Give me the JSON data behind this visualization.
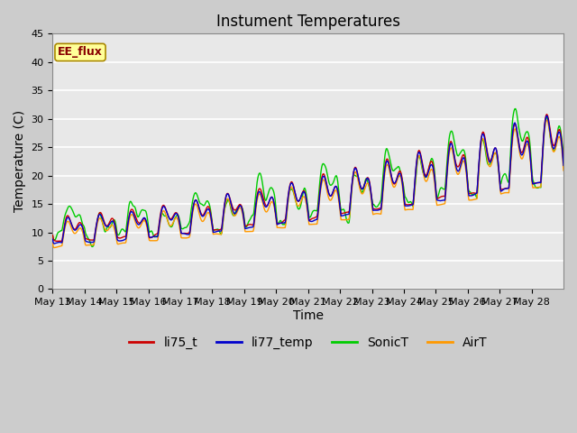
{
  "title": "Instument Temperatures",
  "xlabel": "Time",
  "ylabel": "Temperature (C)",
  "ylim": [
    0,
    45
  ],
  "yticks": [
    0,
    5,
    10,
    15,
    20,
    25,
    30,
    35,
    40,
    45
  ],
  "xtick_labels": [
    "May 13",
    "May 14",
    "May 15",
    "May 16",
    "May 17",
    "May 18",
    "May 19",
    "May 20",
    "May 21",
    "May 22",
    "May 23",
    "May 24",
    "May 25",
    "May 26",
    "May 27",
    "May 28"
  ],
  "legend_entries": [
    "li75_t",
    "li77_temp",
    "SonicT",
    "AirT"
  ],
  "legend_colors": [
    "#cc0000",
    "#0000cc",
    "#00cc00",
    "#ff9900"
  ],
  "annotation_text": "EE_flux",
  "annotation_bg": "#ffff99",
  "annotation_border": "#aa8800",
  "annotation_text_color": "#880000",
  "fig_bg_color": "#cccccc",
  "plot_bg_color": "#e8e8e8",
  "grid_color": "#ffffff",
  "title_fontsize": 12,
  "axis_label_fontsize": 10,
  "tick_fontsize": 8,
  "legend_fontsize": 10,
  "line_width": 1.0
}
